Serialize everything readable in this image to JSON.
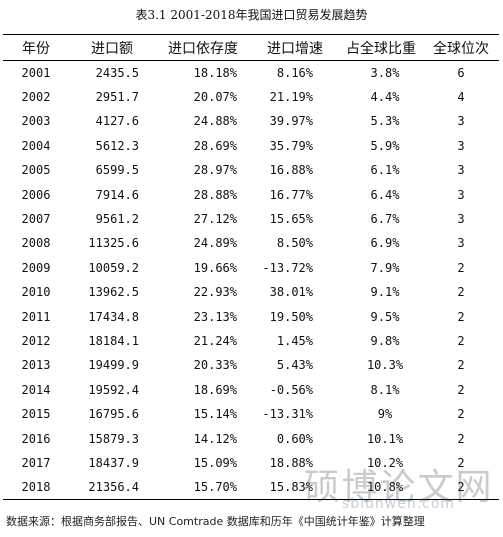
{
  "caption": "表3.1 2001-2018年我国进口贸易发展趋势",
  "table": {
    "headers": [
      "年份",
      "进口额",
      "进口依存度",
      "进口增速",
      "占全球比重",
      "全球位次"
    ],
    "rows": [
      [
        "2001",
        "2435.5",
        "18.18%",
        "8.16%",
        "3.8%",
        "6"
      ],
      [
        "2002",
        "2951.7",
        "20.07%",
        "21.19%",
        "4.4%",
        "4"
      ],
      [
        "2003",
        "4127.6",
        "24.88%",
        "39.97%",
        "5.3%",
        "3"
      ],
      [
        "2004",
        "5612.3",
        "28.69%",
        "35.79%",
        "5.9%",
        "3"
      ],
      [
        "2005",
        "6599.5",
        "28.97%",
        "16.88%",
        "6.1%",
        "3"
      ],
      [
        "2006",
        "7914.6",
        "28.88%",
        "16.77%",
        "6.4%",
        "3"
      ],
      [
        "2007",
        "9561.2",
        "27.12%",
        "15.65%",
        "6.7%",
        "3"
      ],
      [
        "2008",
        "11325.6",
        "24.89%",
        "8.50%",
        "6.9%",
        "3"
      ],
      [
        "2009",
        "10059.2",
        "19.66%",
        "-13.72%",
        "7.9%",
        "2"
      ],
      [
        "2010",
        "13962.5",
        "22.93%",
        "38.01%",
        "9.1%",
        "2"
      ],
      [
        "2011",
        "17434.8",
        "23.13%",
        "19.50%",
        "9.5%",
        "2"
      ],
      [
        "2012",
        "18184.1",
        "21.24%",
        "1.45%",
        "9.8%",
        "2"
      ],
      [
        "2013",
        "19499.9",
        "20.33%",
        "5.43%",
        "10.3%",
        "2"
      ],
      [
        "2014",
        "19592.4",
        "18.69%",
        "-0.56%",
        "8.1%",
        "2"
      ],
      [
        "2015",
        "16795.6",
        "15.14%",
        "-13.31%",
        "9%",
        "2"
      ],
      [
        "2016",
        "15879.3",
        "14.12%",
        "0.60%",
        "10.1%",
        "2"
      ],
      [
        "2017",
        "18437.9",
        "15.09%",
        "18.88%",
        "10.2%",
        "2"
      ],
      [
        "2018",
        "21356.4",
        "15.70%",
        "15.83%",
        "10.8%",
        "2"
      ]
    ]
  },
  "source": "数据来源：根据商务部报告、UN Comtrade 数据库和历年《中国统计年鉴》计算整理",
  "watermark": {
    "text": "硕博论文网",
    "url": "sblunwen.com"
  }
}
